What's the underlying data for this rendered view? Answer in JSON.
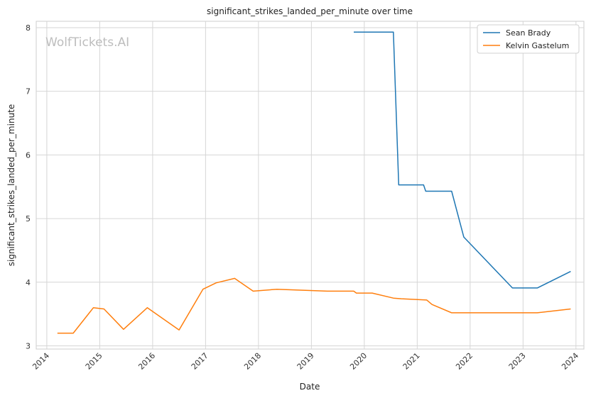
{
  "chart_data": {
    "type": "line",
    "title": "significant_strikes_landed_per_minute over time",
    "xlabel": "Date",
    "ylabel": "significant_strikes_landed_per_minute",
    "watermark": "WolfTickets.AI",
    "xlim": [
      2013.8,
      2024.15
    ],
    "ylim": [
      2.95,
      8.1
    ],
    "xticks": [
      2014,
      2015,
      2016,
      2017,
      2018,
      2019,
      2020,
      2021,
      2022,
      2023,
      2024
    ],
    "yticks": [
      3,
      4,
      5,
      6,
      7,
      8
    ],
    "grid": true,
    "legend_position": "top-right",
    "colors": {
      "Sean Brady": "#1f77b4",
      "Kelvin Gastelum": "#ff7f0e"
    },
    "series": [
      {
        "name": "Sean Brady",
        "x": [
          2019.8,
          2020.55,
          2020.65,
          2021.12,
          2021.16,
          2021.65,
          2021.88,
          2022.8,
          2023.27,
          2023.9
        ],
        "y": [
          7.93,
          7.93,
          5.53,
          5.53,
          5.43,
          5.43,
          4.71,
          3.91,
          3.91,
          4.17
        ]
      },
      {
        "name": "Kelvin Gastelum",
        "x": [
          2014.2,
          2014.5,
          2014.88,
          2015.08,
          2015.45,
          2015.9,
          2016.5,
          2016.95,
          2017.2,
          2017.55,
          2017.9,
          2018.35,
          2019.3,
          2019.8,
          2019.85,
          2020.15,
          2020.55,
          2020.7,
          2021.18,
          2021.28,
          2021.65,
          2022.5,
          2023.27,
          2023.9
        ],
        "y": [
          3.2,
          3.2,
          3.6,
          3.58,
          3.26,
          3.6,
          3.25,
          3.89,
          3.99,
          4.06,
          3.86,
          3.89,
          3.86,
          3.86,
          3.83,
          3.83,
          3.75,
          3.74,
          3.72,
          3.65,
          3.52,
          3.52,
          3.52,
          3.58
        ]
      }
    ]
  }
}
